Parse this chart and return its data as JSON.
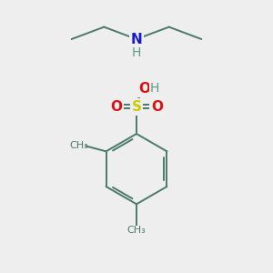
{
  "background_color": "#eeeeee",
  "bond_color": "#4a7a6a",
  "N_color": "#1a1acc",
  "H_color": "#5a9a8a",
  "S_color": "#cccc00",
  "O_color": "#dd1111",
  "figsize": [
    3.0,
    3.0
  ],
  "dpi": 100,
  "xlim": [
    0,
    10
  ],
  "ylim": [
    0,
    10
  ]
}
